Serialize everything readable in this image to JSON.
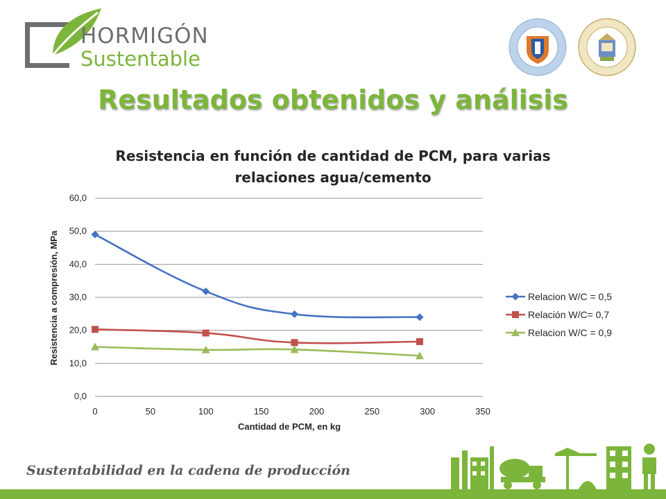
{
  "logo": {
    "line1": "HORMIGÓN",
    "line2": "Sustentable"
  },
  "slide_title": "Resultados obtenidos y análisis",
  "footer": {
    "tagline": "Sustentabilidad en la cadena de producción"
  },
  "colors": {
    "accent": "#7cb53b",
    "series1": "#4472c4",
    "series2": "#c0504d",
    "series3": "#9bbb59"
  },
  "chart_data": {
    "type": "line",
    "title": "Resistencia en función de cantidad de PCM, para varias relaciones agua/cemento",
    "xlabel": "Cantidad de PCM, en kg",
    "ylabel": "Resistencia a compresión, MPa",
    "xlim": [
      0,
      350
    ],
    "ylim": [
      0,
      60
    ],
    "x_ticks": [
      "0",
      "50",
      "100",
      "150",
      "200",
      "250",
      "300",
      "350"
    ],
    "y_ticks": [
      "0,0",
      "10,0",
      "20,0",
      "30,0",
      "40,0",
      "50,0",
      "60,0"
    ],
    "grid": "horizontal",
    "legend_position": "right",
    "series": [
      {
        "name": "Relacion W/C = 0,5",
        "marker": "diamond",
        "x": [
          0,
          100,
          180,
          293
        ],
        "y": [
          49.0,
          31.8,
          24.9,
          24.0
        ]
      },
      {
        "name": "Relación W/C= 0,7",
        "marker": "square",
        "x": [
          0,
          100,
          180,
          293
        ],
        "y": [
          20.3,
          19.2,
          16.3,
          16.6
        ]
      },
      {
        "name": "Relacion W/C = 0,9",
        "marker": "triangle",
        "x": [
          0,
          100,
          180,
          293
        ],
        "y": [
          15.0,
          14.1,
          14.2,
          12.3
        ]
      }
    ]
  }
}
